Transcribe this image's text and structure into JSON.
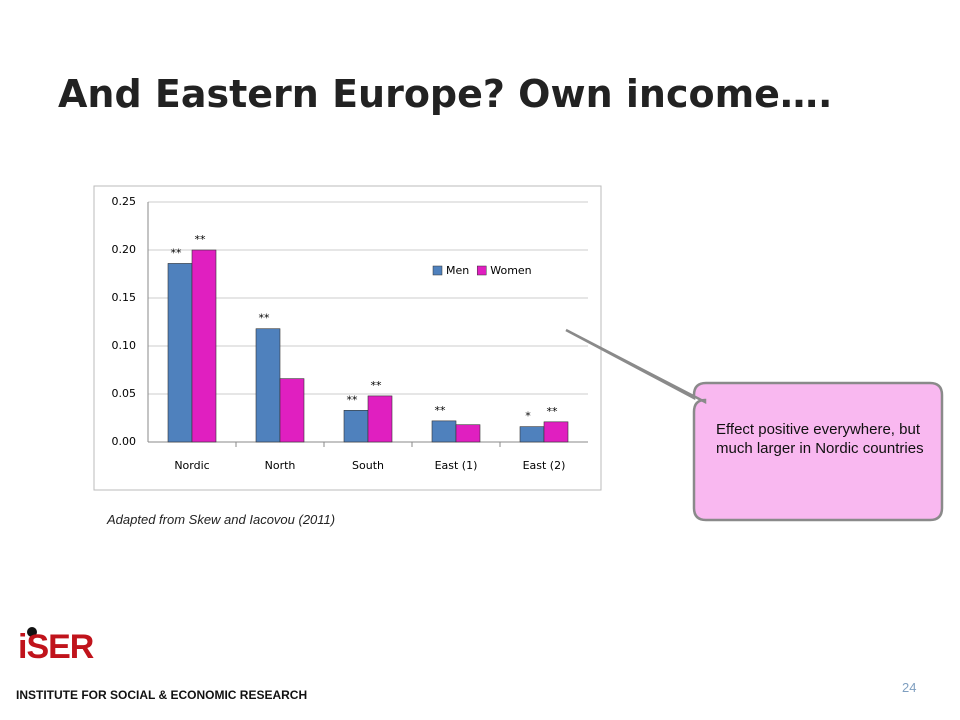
{
  "title": "And Eastern Europe? Own income….",
  "source": "Adapted from Skew and Iacovou (2011)",
  "callout": "Effect positive everywhere, but much larger in Nordic countries",
  "page_number": "24",
  "logo": {
    "name": "iSER",
    "subtitle": "INSTITUTE FOR SOCIAL & ECONOMIC RESEARCH"
  },
  "chart_data": {
    "type": "bar",
    "categories": [
      "Nordic",
      "North",
      "South",
      "East (1)",
      "East (2)"
    ],
    "series": [
      {
        "name": "Men",
        "color": "#4f81bd",
        "values": [
          0.186,
          0.118,
          0.033,
          0.022,
          0.016
        ],
        "significance": [
          "**",
          "**",
          "**",
          "**",
          "*"
        ]
      },
      {
        "name": "Women",
        "color": "#e01fc0",
        "values": [
          0.2,
          0.066,
          0.048,
          0.018,
          0.021
        ],
        "significance": [
          "**",
          null,
          "**",
          null,
          "**"
        ]
      }
    ],
    "ylim": [
      0,
      0.25
    ],
    "yticks": [
      {
        "value": 0,
        "label": "0.00"
      },
      {
        "value": 0.05,
        "label": "0.05"
      },
      {
        "value": 0.1,
        "label": "0.10"
      },
      {
        "value": 0.15,
        "label": "0.15"
      },
      {
        "value": 0.2,
        "label": "0.20"
      },
      {
        "value": 0.25,
        "label": "0.25"
      }
    ],
    "grid": true,
    "legend": "upper right"
  }
}
